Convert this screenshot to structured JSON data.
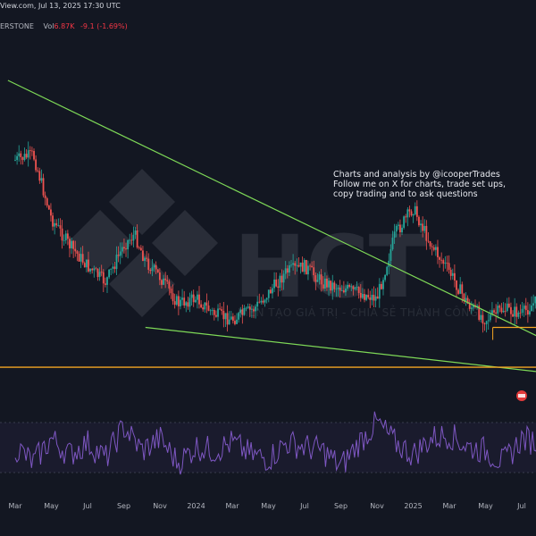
{
  "header": {
    "source_fragment": "View.com, Jul 13, 2025 17:30 UTC",
    "symbol_fragment": "ERSTONE",
    "volume_label": "Vol",
    "volume_value": "6.87K",
    "change_value": "-9.1 (-1.69%)"
  },
  "annotation": {
    "lines": [
      "Charts and analysis by @icooperTrades",
      "Follow me on X for charts, trade set ups,",
      "copy trading and to ask questions"
    ]
  },
  "watermark": {
    "logo_text": "HCT",
    "tagline": "KIẾN TẠO GIÁ TRỊ - CHIA SẺ THÀNH CÔNG"
  },
  "colors": {
    "background": "#131722",
    "candle_up": "#26a69a",
    "candle_down": "#ef5350",
    "trendline": "#7ed957",
    "support": "#f5a623",
    "oscillator": "#7e57c2",
    "marker": "#e23b3b"
  },
  "chart_data": {
    "type": "candlestick",
    "x_tick_labels": [
      "Mar",
      "May",
      "Jul",
      "Sep",
      "Nov",
      "2024",
      "Mar",
      "May",
      "Jul",
      "Sep",
      "Nov",
      "2025",
      "Mar",
      "May",
      "Jul"
    ],
    "x_range": [
      "2023-02",
      "2025-07"
    ],
    "price_path": [
      [
        0,
        0.3
      ],
      [
        0.5,
        0.28
      ],
      [
        1.0,
        0.52
      ],
      [
        1.5,
        0.62
      ],
      [
        2.0,
        0.7
      ],
      [
        2.5,
        0.76
      ],
      [
        3.0,
        0.62
      ],
      [
        3.3,
        0.58
      ],
      [
        3.6,
        0.68
      ],
      [
        4.0,
        0.74
      ],
      [
        4.5,
        0.84
      ],
      [
        5.0,
        0.82
      ],
      [
        5.5,
        0.88
      ],
      [
        6.0,
        0.9
      ],
      [
        6.6,
        0.86
      ],
      [
        7.0,
        0.8
      ],
      [
        7.5,
        0.72
      ],
      [
        8.0,
        0.7
      ],
      [
        8.5,
        0.76
      ],
      [
        9.0,
        0.78
      ],
      [
        9.5,
        0.8
      ],
      [
        10.0,
        0.82
      ],
      [
        10.5,
        0.58
      ],
      [
        11.0,
        0.48
      ],
      [
        11.5,
        0.62
      ],
      [
        12.0,
        0.72
      ],
      [
        12.5,
        0.84
      ],
      [
        13.0,
        0.9
      ],
      [
        13.5,
        0.86
      ],
      [
        14.0,
        0.88
      ],
      [
        14.5,
        0.82
      ],
      [
        15.0,
        0.86
      ]
    ],
    "oscillator_path": [
      [
        0,
        0.5
      ],
      [
        0.5,
        0.3
      ],
      [
        1.0,
        0.6
      ],
      [
        1.5,
        0.4
      ],
      [
        2.0,
        0.55
      ],
      [
        2.5,
        0.35
      ],
      [
        3.0,
        0.75
      ],
      [
        3.5,
        0.45
      ],
      [
        4.0,
        0.6
      ],
      [
        4.5,
        0.3
      ],
      [
        5.0,
        0.5
      ],
      [
        5.5,
        0.45
      ],
      [
        6.0,
        0.55
      ],
      [
        6.5,
        0.4
      ],
      [
        7.0,
        0.35
      ],
      [
        7.5,
        0.55
      ],
      [
        8.0,
        0.5
      ],
      [
        8.5,
        0.45
      ],
      [
        9.0,
        0.25
      ],
      [
        9.5,
        0.55
      ],
      [
        10.0,
        0.8
      ],
      [
        10.5,
        0.55
      ],
      [
        11.0,
        0.4
      ],
      [
        11.5,
        0.6
      ],
      [
        12.0,
        0.65
      ],
      [
        12.5,
        0.5
      ],
      [
        13.0,
        0.45
      ],
      [
        13.5,
        0.3
      ],
      [
        14.0,
        0.6
      ],
      [
        14.5,
        0.55
      ],
      [
        15.0,
        0.5
      ]
    ],
    "trendlines": [
      {
        "name": "descending resistance",
        "from": [
          -0.2,
          0.0
        ],
        "to": [
          15.3,
          1.02
        ]
      },
      {
        "name": "lower support",
        "from": [
          3.6,
          0.93
        ],
        "to": [
          15.3,
          1.11
        ]
      }
    ],
    "support_levels": [
      1.08
    ],
    "resistance_box": {
      "from_x": 13.2,
      "to_x": 15.3,
      "level": 0.93
    },
    "grid": false,
    "legend": "none"
  }
}
